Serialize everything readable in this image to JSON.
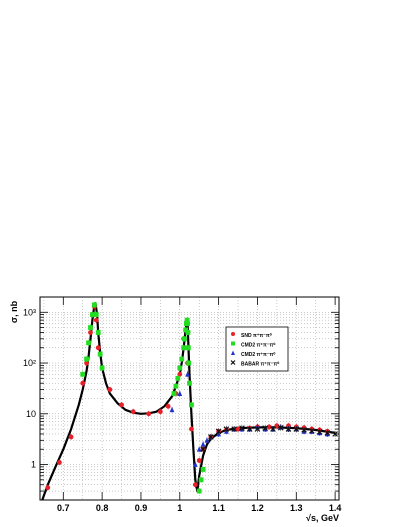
{
  "chart_data": {
    "type": "scatter",
    "title": "",
    "xlabel": "√s, GeV",
    "ylabel": "σ, nb",
    "xlim": [
      0.64,
      1.41
    ],
    "ylim": [
      0.2,
      2000
    ],
    "yscale": "log",
    "grid": true,
    "legend_position": "center-right",
    "x_ticks": [
      0.7,
      0.8,
      0.9,
      1.0,
      1.1,
      1.2,
      1.3,
      1.4
    ],
    "x_tick_labels": [
      "0.7",
      "0.8",
      "0.9",
      "1",
      "1.1",
      "1.2",
      "1.3",
      "1.4"
    ],
    "y_ticks": [
      1,
      10,
      100,
      1000
    ],
    "y_tick_labels": [
      "1",
      "10",
      "10²",
      "10³"
    ],
    "series": [
      {
        "name": "SND π⁺π⁻π⁰",
        "marker": "circle",
        "color": "#e8202a",
        "x": [
          0.66,
          0.69,
          0.72,
          0.75,
          0.76,
          0.77,
          0.775,
          0.78,
          0.785,
          0.79,
          0.8,
          0.82,
          0.85,
          0.88,
          0.92,
          0.95,
          0.97,
          0.99,
          1.0,
          1.01,
          1.02,
          1.03,
          1.04,
          1.05,
          1.06,
          1.08,
          1.1,
          1.12,
          1.15,
          1.18,
          1.2,
          1.23,
          1.25,
          1.28,
          1.3,
          1.32,
          1.34,
          1.36,
          1.38
        ],
        "y": [
          0.35,
          1.1,
          3.5,
          40,
          100,
          400,
          900,
          1300,
          700,
          200,
          80,
          30,
          15,
          11,
          10,
          11,
          14,
          25,
          60,
          300,
          100,
          5,
          0.4,
          1.2,
          2,
          3.5,
          4.5,
          4.8,
          5,
          5.2,
          5.5,
          5.5,
          5.8,
          5.8,
          5.5,
          5.3,
          5,
          4.8,
          4.5
        ]
      },
      {
        "name": "CMD2 π⁺π⁻π⁰",
        "marker": "square",
        "color": "#22dd22",
        "x": [
          0.75,
          0.76,
          0.765,
          0.77,
          0.775,
          0.78,
          0.785,
          0.79,
          0.795,
          0.8,
          0.985,
          0.99,
          0.995,
          1.0,
          1.005,
          1.01,
          1.012,
          1.015,
          1.017,
          1.019,
          1.02,
          1.021,
          1.022,
          1.023,
          1.025,
          1.03,
          1.05,
          1.055,
          1.06
        ],
        "y": [
          60,
          120,
          250,
          500,
          900,
          1400,
          900,
          400,
          150,
          80,
          25,
          35,
          50,
          80,
          120,
          200,
          300,
          450,
          600,
          700,
          600,
          400,
          200,
          100,
          40,
          15,
          0.3,
          0.5,
          0.8
        ]
      },
      {
        "name": "CMD2 π⁺π⁻π⁰",
        "marker": "triangle",
        "color": "#2233cc",
        "x": [
          0.98,
          1.0,
          1.02,
          1.04,
          1.05,
          1.06,
          1.07,
          1.08,
          1.1,
          1.12,
          1.14,
          1.16,
          1.18,
          1.2,
          1.22,
          1.24,
          1.26,
          1.28,
          1.3,
          1.32,
          1.34,
          1.36,
          1.38
        ],
        "y": [
          12,
          25,
          60,
          1,
          2,
          2.5,
          3,
          3.5,
          4,
          4.5,
          5,
          5,
          5,
          5.5,
          5,
          5,
          5.5,
          5,
          5,
          4.5,
          4.5,
          4.2,
          4
        ]
      },
      {
        "name": "BABAR π⁺π⁻π⁰",
        "marker": "cross",
        "color": "#111111",
        "x": [
          1.06,
          1.08,
          1.1,
          1.12,
          1.14,
          1.16,
          1.18,
          1.2,
          1.22,
          1.24,
          1.26,
          1.28,
          1.3,
          1.32,
          1.34,
          1.36,
          1.38,
          1.4
        ],
        "y": [
          2,
          3.5,
          4.5,
          5,
          5,
          5.2,
          5,
          5,
          5.2,
          5,
          5.3,
          5,
          5,
          4.8,
          4.6,
          4.4,
          4.2,
          4
        ]
      }
    ],
    "fit_curve": {
      "color": "#000000",
      "x": [
        0.64,
        0.66,
        0.68,
        0.7,
        0.72,
        0.74,
        0.75,
        0.76,
        0.765,
        0.77,
        0.775,
        0.78,
        0.783,
        0.787,
        0.79,
        0.795,
        0.8,
        0.81,
        0.82,
        0.84,
        0.86,
        0.88,
        0.9,
        0.92,
        0.94,
        0.96,
        0.98,
        0.99,
        1.0,
        1.005,
        1.01,
        1.015,
        1.018,
        1.019,
        1.02,
        1.022,
        1.025,
        1.03,
        1.035,
        1.04,
        1.045,
        1.05,
        1.06,
        1.07,
        1.08,
        1.1,
        1.12,
        1.15,
        1.2,
        1.25,
        1.3,
        1.35,
        1.4
      ],
      "y": [
        0.15,
        0.4,
        0.9,
        2,
        5,
        15,
        30,
        70,
        130,
        300,
        700,
        1400,
        1500,
        900,
        400,
        160,
        80,
        40,
        25,
        16,
        12,
        10.5,
        10,
        10.2,
        11,
        14,
        22,
        35,
        60,
        100,
        200,
        450,
        650,
        700,
        600,
        250,
        60,
        10,
        2,
        0.5,
        0.3,
        0.6,
        1.5,
        2.5,
        3.2,
        4.2,
        4.8,
        5.2,
        5.4,
        5.4,
        5.2,
        4.8,
        4.2
      ]
    }
  }
}
